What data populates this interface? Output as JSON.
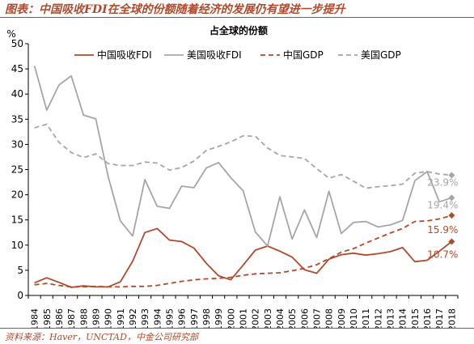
{
  "figure_title": "图表：中国吸收FDI在全球的份额随着经济的发展仍有望进一步提升",
  "source_note": "资料来源：Haver，UNCTAD，中金公司研究部",
  "chart_data": {
    "type": "line",
    "title": "占全球的份额",
    "ylabel": "%",
    "xlabel": "",
    "ylim": [
      0,
      50
    ],
    "yticks": [
      0,
      5,
      10,
      15,
      20,
      25,
      30,
      35,
      40,
      45,
      50
    ],
    "grid": false,
    "legend_position": "top",
    "categories": [
      "1984",
      "1985",
      "1986",
      "1987",
      "1988",
      "1989",
      "1990",
      "1991",
      "1992",
      "1993",
      "1994",
      "1995",
      "1996",
      "1997",
      "1998",
      "1999",
      "2000",
      "2001",
      "2002",
      "2003",
      "2004",
      "2005",
      "2006",
      "2007",
      "2008",
      "2009",
      "2010",
      "2011",
      "2012",
      "2013",
      "2014",
      "2015",
      "2016",
      "2017",
      "2018"
    ],
    "series": [
      {
        "name": "中国吸收FDI",
        "color": "#b1492b",
        "dash": "solid",
        "end_label": "10.7%",
        "values": [
          2.5,
          3.5,
          2.6,
          1.6,
          1.9,
          1.7,
          1.7,
          2.7,
          6.8,
          12.5,
          13.3,
          11.0,
          10.7,
          9.4,
          6.4,
          3.9,
          3.1,
          6.0,
          9.0,
          9.8,
          8.8,
          7.6,
          5.1,
          4.4,
          7.2,
          8.1,
          8.4,
          8.0,
          8.3,
          8.7,
          9.5,
          6.7,
          7.0,
          8.8,
          10.7
        ]
      },
      {
        "name": "美国吸收FDI",
        "color": "#a6a6a6",
        "dash": "solid",
        "end_label": "19.4%",
        "values": [
          45.6,
          36.8,
          41.8,
          43.6,
          35.8,
          35.1,
          23.7,
          14.8,
          11.8,
          23.0,
          17.7,
          17.3,
          21.7,
          21.4,
          25.3,
          26.4,
          23.4,
          20.8,
          12.6,
          9.8,
          19.6,
          11.2,
          17.0,
          11.5,
          20.7,
          12.3,
          14.5,
          14.7,
          13.6,
          14.0,
          14.9,
          22.8,
          24.6,
          18.6,
          19.4
        ]
      },
      {
        "name": "中国GDP",
        "color": "#b1492b",
        "dash": "dashed",
        "end_label": "15.9%",
        "values": [
          2.1,
          2.4,
          2.0,
          1.7,
          1.7,
          1.8,
          1.7,
          1.7,
          1.8,
          1.8,
          2.0,
          2.4,
          2.8,
          3.1,
          3.3,
          3.4,
          3.6,
          4.0,
          4.3,
          4.4,
          4.5,
          4.9,
          5.4,
          6.1,
          7.3,
          8.6,
          9.3,
          10.4,
          11.4,
          12.4,
          13.3,
          14.7,
          14.8,
          15.2,
          15.9
        ]
      },
      {
        "name": "美国GDP",
        "color": "#a6a6a6",
        "dash": "dashed",
        "end_label": "23.9%",
        "values": [
          33.3,
          34.0,
          30.4,
          28.4,
          27.4,
          28.1,
          26.2,
          25.8,
          25.8,
          26.5,
          26.3,
          24.9,
          25.4,
          26.7,
          28.8,
          29.6,
          30.5,
          31.7,
          31.6,
          29.3,
          27.8,
          27.5,
          27.2,
          25.2,
          23.3,
          24.0,
          22.7,
          21.3,
          21.6,
          21.8,
          22.1,
          24.3,
          24.6,
          24.1,
          23.9
        ]
      }
    ]
  }
}
